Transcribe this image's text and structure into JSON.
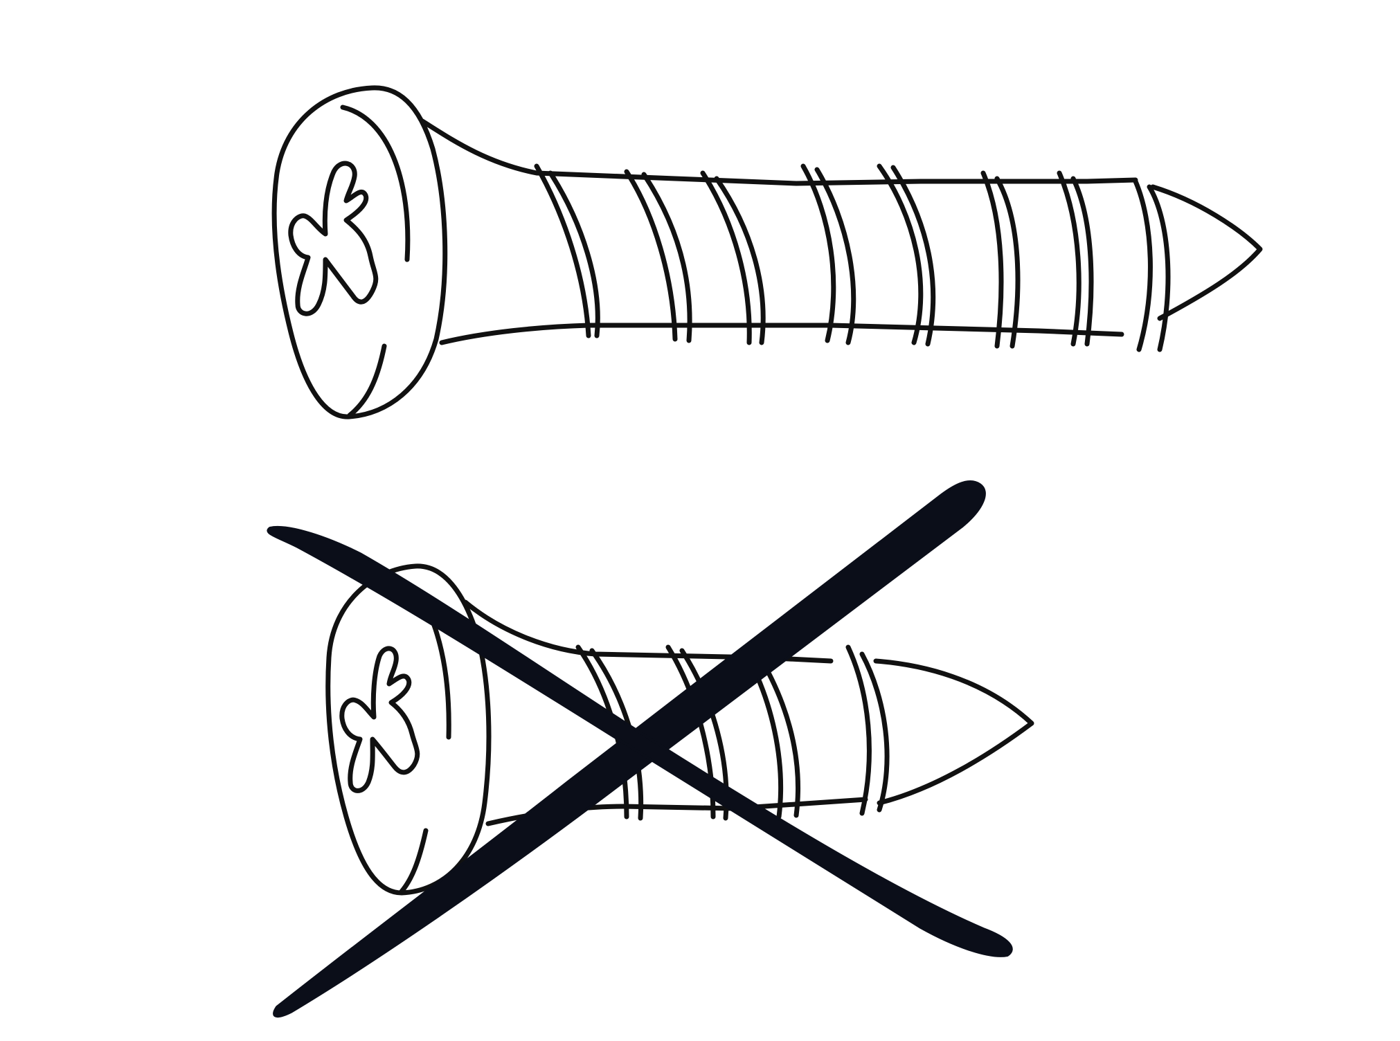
{
  "illustration": {
    "background_color": "#ffffff",
    "ink_color": "#111111",
    "cross_color": "#0b0e19",
    "items": [
      {
        "name": "long-screw",
        "kind": "phillips-head-screw",
        "crossed_out": false
      },
      {
        "name": "short-screw",
        "kind": "phillips-head-screw",
        "crossed_out": true
      }
    ]
  }
}
